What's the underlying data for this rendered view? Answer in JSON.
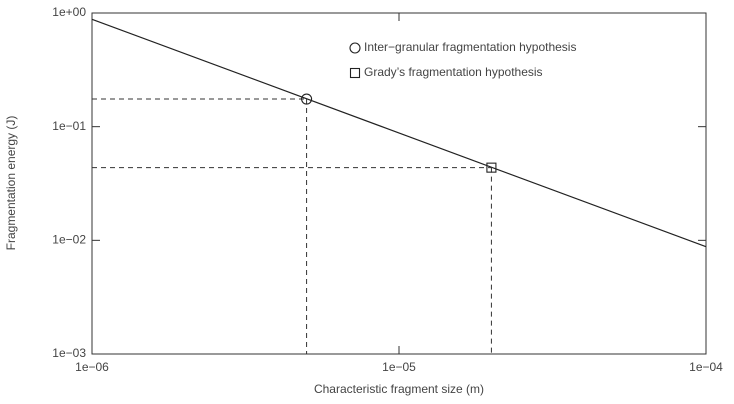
{
  "chart_data": {
    "type": "loglog-line",
    "xlabel": "Characteristic fragment size (m)",
    "ylabel": "Fragmentation energy (J)",
    "xscale": "log",
    "yscale": "log",
    "xlim": [
      1e-06,
      0.0001
    ],
    "ylim": [
      0.001,
      1
    ],
    "xticks": [
      {
        "value": 1e-06,
        "label": "1e−06"
      },
      {
        "value": 1e-05,
        "label": "1e−05"
      },
      {
        "value": 0.0001,
        "label": "1e−04"
      }
    ],
    "yticks": [
      {
        "value": 0.001,
        "label": "1e−03"
      },
      {
        "value": 0.01,
        "label": "1e−02"
      },
      {
        "value": 0.1,
        "label": "1e−01"
      },
      {
        "value": 1,
        "label": "1e+00"
      }
    ],
    "fit": {
      "x": [
        1e-06,
        0.0001
      ],
      "y": [
        0.88,
        0.0088
      ],
      "color": "#222222"
    },
    "series": [
      {
        "name": "Inter−granular fragmentation hypothesis",
        "marker": "circle",
        "color": "#222222",
        "x": [
          5e-06
        ],
        "values": [
          0.175
        ]
      },
      {
        "name": "Grady’s fragmentation hypothesis",
        "marker": "square",
        "color": "#222222",
        "x": [
          2e-05
        ],
        "values": [
          0.0436
        ]
      }
    ],
    "legend": "upper right",
    "guides": "dashed"
  }
}
